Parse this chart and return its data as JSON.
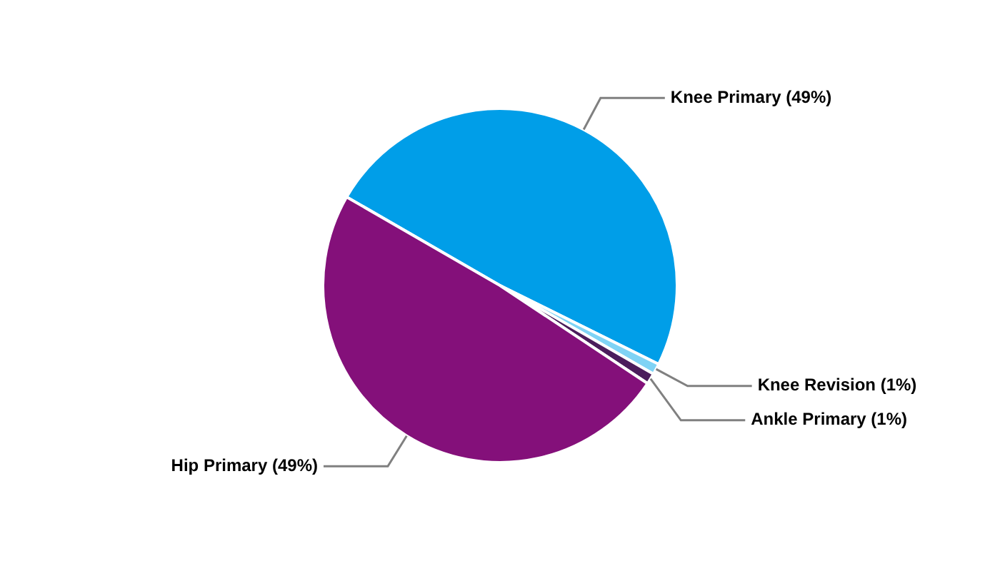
{
  "chart_data": {
    "type": "pie",
    "categories": [
      "Knee Primary (49%)",
      "Knee Revision (1%)",
      "Ankle Primary (1%)",
      "Hip Primary (49%)"
    ],
    "values": [
      49,
      1,
      1,
      49
    ],
    "colors": [
      "#009ee8",
      "#7fd3f5",
      "#4b1d5c",
      "#84107a"
    ],
    "legend": false
  }
}
